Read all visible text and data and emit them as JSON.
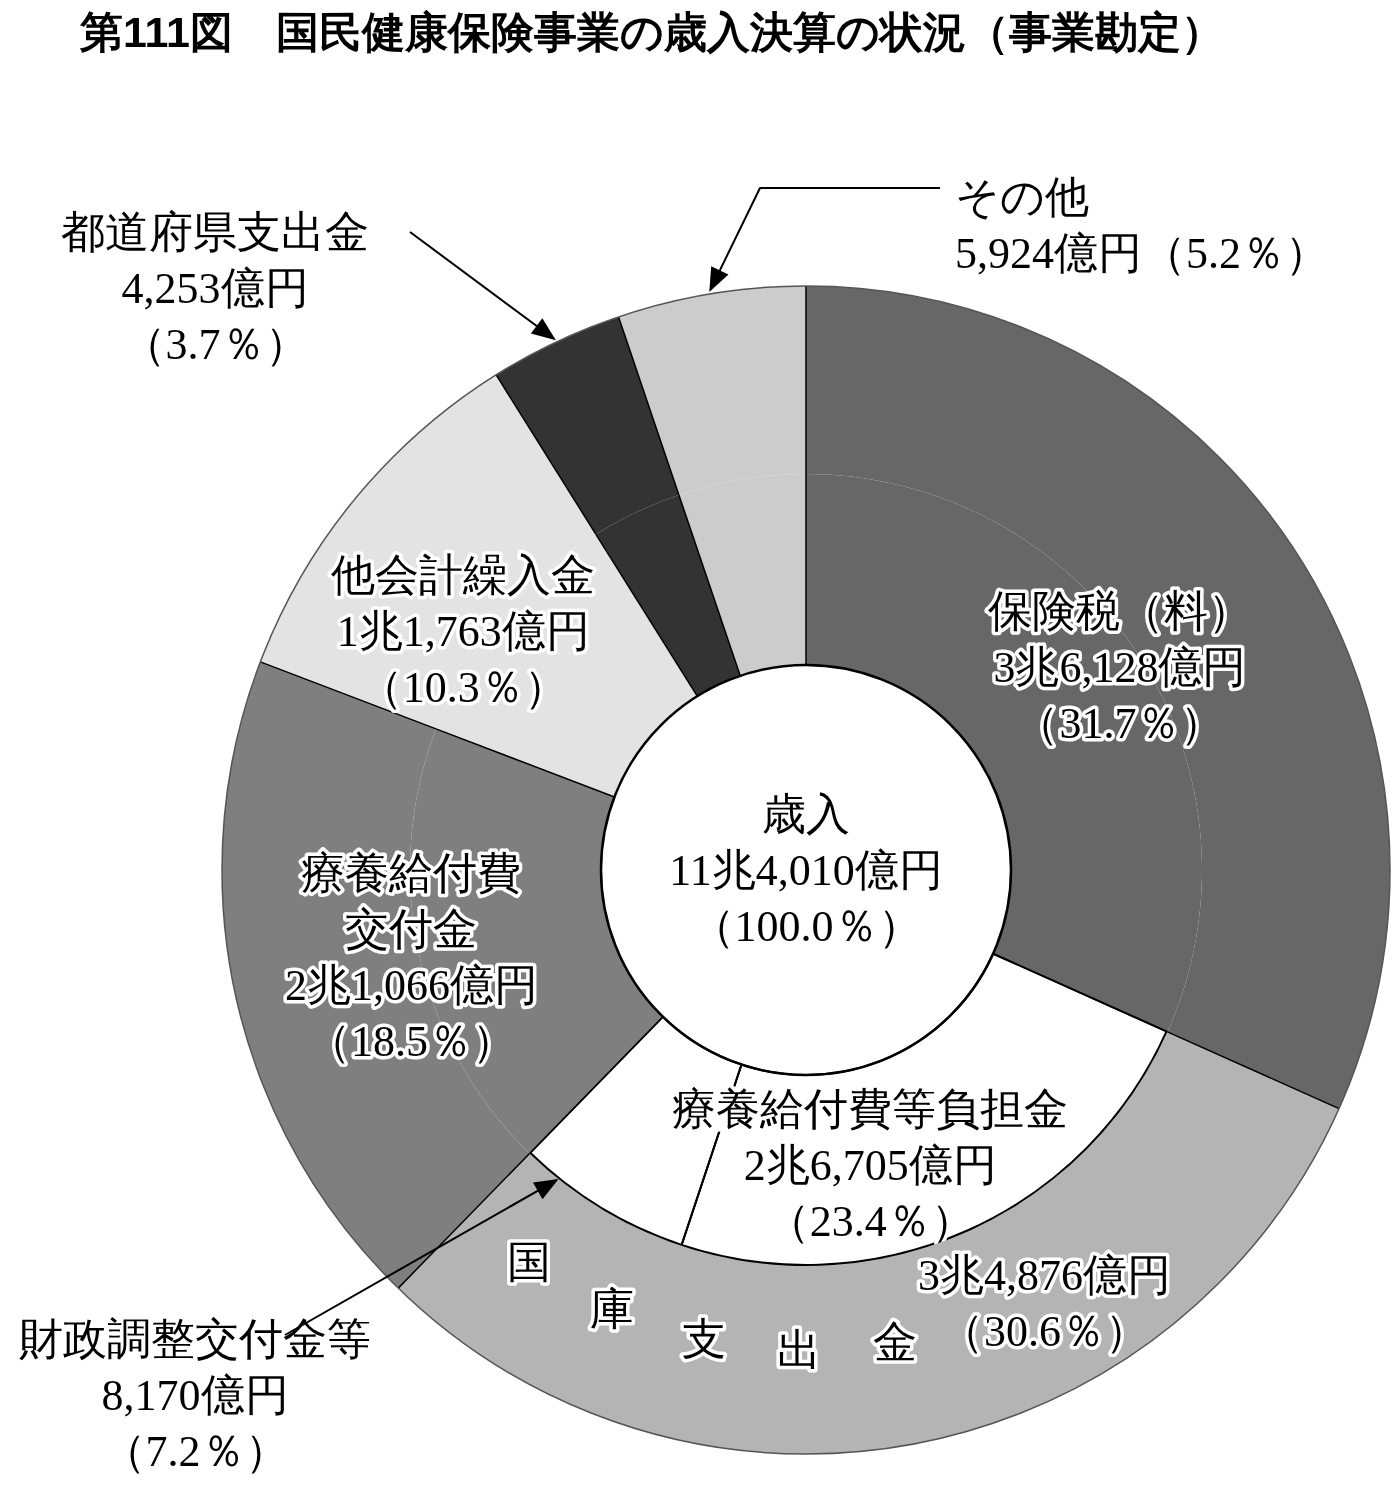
{
  "chart_data": [
    {
      "type": "donut",
      "title": "第111図　国民健康保険事業の歳入決算の状況（事業勘定）",
      "categories": [
        "保険税（料）",
        "国庫支出金",
        "療養給付費交付金",
        "他会計繰入金",
        "都道府県支出金",
        "その他"
      ],
      "values": [
        31.7,
        30.6,
        18.5,
        10.3,
        3.7,
        5.2
      ],
      "colors": [
        "#676767",
        "#b4b4b4",
        "#7f7f7f",
        "#e3e3e3",
        "#333333",
        "#cccccc"
      ],
      "value_labels": [
        "3兆6,128億円（31.7％）",
        "3兆4,876億円（30.6％）",
        "2兆1,066億円（18.5％）",
        "1兆1,763億円（10.3％）",
        "4,253億円（3.7％）",
        "5,924億円（5.2％）"
      ],
      "annotations": [
        "歳入",
        "11兆4,010億円（100.0％）"
      ]
    },
    {
      "type": "donut",
      "categories": [
        null,
        "療養給付費等負担金",
        "財政調整交付金等",
        null,
        null,
        null,
        null
      ],
      "values": [
        31.7,
        23.4,
        7.2,
        18.5,
        10.3,
        3.7,
        5.2
      ],
      "colors": [
        "#676767",
        "#ffffff",
        "#ffffff",
        "#7f7f7f",
        "#e3e3e3",
        "#333333",
        "#cccccc"
      ],
      "value_labels": [
        null,
        "2兆6,705億円（23.4％）",
        "8,170億円（7.2％）",
        null,
        null,
        null,
        null
      ]
    }
  ]
}
